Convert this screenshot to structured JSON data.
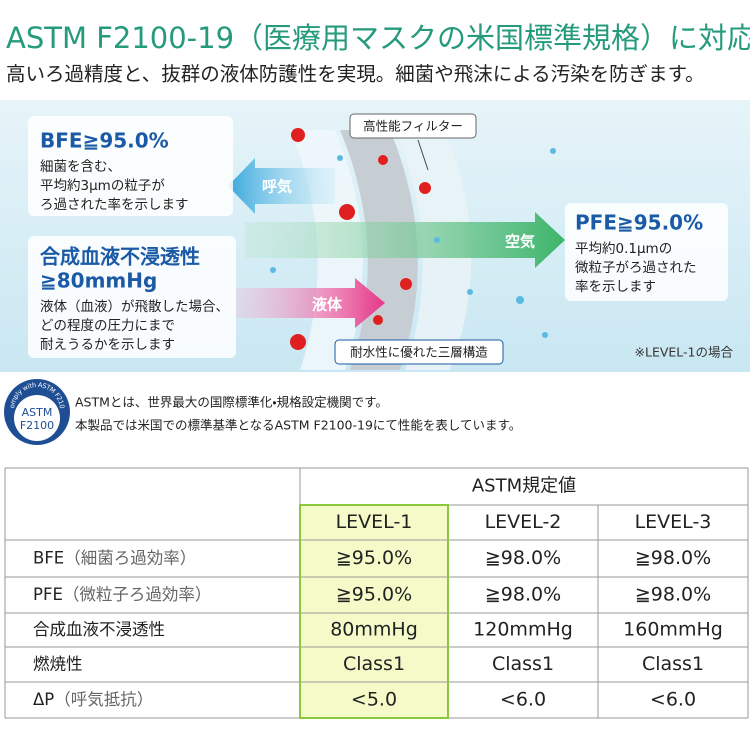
{
  "title": "ASTM F2100-19（医療用マスクの米国標準規格）に対応",
  "subtitle": "高いろ過精度と、抜群の液体防護性を実現。細菌や飛沫による汚染を防ぎます。",
  "diagram": {
    "bfe": {
      "heading": "BFE≧95.0%",
      "lines": [
        "細菌を含む、",
        "平均約3μmの粒子が",
        "ろ過された率を示します"
      ]
    },
    "fluid": {
      "heading": [
        "合成血液不浸透性",
        "≧80mmHg"
      ],
      "lines": [
        "液体（血液）が飛散した場合、",
        "どの程度の圧力にまで",
        "耐えうるかを示します"
      ]
    },
    "pfe": {
      "heading": "PFE≧95.0%",
      "lines": [
        "平均約0.1μmの",
        "微粒子がろ過された",
        "率を示します"
      ]
    },
    "filter_label": "高性能フィルター",
    "structure_label": "耐水性に優れた三層構造",
    "note": "※LEVEL-1の場合",
    "arrows": {
      "exhale": "呼気",
      "air": "空気",
      "liquid": "液体"
    }
  },
  "astm": {
    "badge": {
      "ring": "Comply with ASTM F2100",
      "name": "ASTM",
      "code": "F2100"
    },
    "lines": [
      "ASTMとは、世界最大の国際標準化・規格設定機関です。",
      "本製品では米国での標準基準となるASTM F2100-19にて性能を表しています。"
    ]
  },
  "table": {
    "group_header": "ASTM規定値",
    "levels": [
      "LEVEL-1",
      "LEVEL-2",
      "LEVEL-3"
    ],
    "rows": [
      {
        "name": "BFE",
        "note": "（細菌ろ過効率）",
        "values": [
          "≧95.0%",
          "≧98.0%",
          "≧98.0%"
        ]
      },
      {
        "name": "PFE",
        "note": "（微粒子ろ過効率）",
        "values": [
          "≧95.0%",
          "≧98.0%",
          "≧98.0%"
        ]
      },
      {
        "name": "合成血液不浸透性",
        "values": [
          "80mmHg",
          "120mmHg",
          "160mmHg"
        ]
      },
      {
        "name": "燃焼性",
        "values": [
          "Class1",
          "Class1",
          "Class1"
        ]
      },
      {
        "name": "ΔP",
        "note": "（呼気抵抗）",
        "values": [
          "<5.0",
          "<6.0",
          "<6.0"
        ]
      }
    ]
  }
}
